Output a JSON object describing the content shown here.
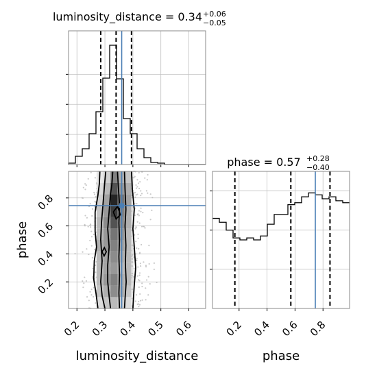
{
  "colors": {
    "truth": "#4a7fb5",
    "hist": "#000000",
    "grid": "#c0c0c0",
    "frame": "#888888"
  },
  "chart_data": {
    "type": "corner",
    "parameters": [
      "luminosity_distance",
      "phase"
    ],
    "truth": {
      "luminosity_distance": 0.36,
      "phase": 0.745
    },
    "luminosity_distance": {
      "title_lhs": "luminosity_distance = 0.34",
      "title_sup": "+0.06",
      "title_sub": "−0.05",
      "xlabel": "luminosity_distance",
      "xlim": [
        0.17,
        0.66
      ],
      "xticks": [
        0.2,
        0.3,
        0.4,
        0.5,
        0.6
      ],
      "xticklabels": [
        "0.2",
        "0.3",
        "0.4",
        "0.5",
        "0.6"
      ],
      "quantiles": [
        0.285,
        0.34,
        0.395
      ],
      "hist": {
        "bin_edges": [
          0.17,
          0.1945,
          0.219,
          0.2435,
          0.268,
          0.2925,
          0.317,
          0.3415,
          0.366,
          0.3905,
          0.415,
          0.4395,
          0.464,
          0.4885,
          0.513,
          0.5375,
          0.562,
          0.5865,
          0.611,
          0.6355,
          0.66
        ],
        "counts": [
          0.2,
          1.2,
          2.3,
          4.5,
          7.7,
          12.6,
          17.4,
          12.5,
          6.7,
          4.5,
          2.3,
          1.0,
          0.3,
          0.2,
          0,
          0,
          0,
          0,
          0,
          0
        ],
        "ymax": 19.5
      }
    },
    "phase": {
      "title_lhs": "phase = 0.57",
      "title_sup": "+0.28",
      "title_sub": "−0.40",
      "xlabel": "phase",
      "ylabel": "phase",
      "lim": [
        0.01,
        0.99
      ],
      "ticks": [
        0.2,
        0.4,
        0.6,
        0.8
      ],
      "ticklabels": [
        "0.2",
        "0.4",
        "0.6",
        "0.8"
      ],
      "quantiles": [
        0.17,
        0.57,
        0.85
      ],
      "hist": {
        "bin_edges": [
          0.01,
          0.059,
          0.108,
          0.157,
          0.206,
          0.255,
          0.304,
          0.353,
          0.402,
          0.451,
          0.5,
          0.549,
          0.598,
          0.647,
          0.696,
          0.745,
          0.794,
          0.843,
          0.892,
          0.941,
          0.99
        ],
        "counts": [
          2.3,
          2.2,
          2.0,
          1.8,
          1.75,
          1.8,
          1.75,
          1.85,
          2.15,
          2.4,
          2.4,
          2.65,
          2.7,
          2.85,
          2.95,
          2.9,
          2.8,
          2.85,
          2.75,
          2.7
        ],
        "ymax": 3.5
      }
    },
    "joint": {
      "hist2d_columns": [
        {
          "x0": 0.27,
          "x1": 0.295,
          "intensity": [
            0.15,
            0.25,
            0.3,
            0.3,
            0.3,
            0.35,
            0.3,
            0.3,
            0.25,
            0.2,
            0.15,
            0.1
          ]
        },
        {
          "x0": 0.295,
          "x1": 0.32,
          "intensity": [
            0.25,
            0.35,
            0.45,
            0.4,
            0.4,
            0.45,
            0.45,
            0.5,
            0.45,
            0.4,
            0.3,
            0.2
          ]
        },
        {
          "x0": 0.32,
          "x1": 0.345,
          "intensity": [
            0.3,
            0.5,
            0.55,
            0.45,
            0.5,
            0.55,
            0.6,
            0.75,
            0.85,
            0.95,
            0.75,
            0.55
          ]
        },
        {
          "x0": 0.345,
          "x1": 0.37,
          "intensity": [
            0.2,
            0.35,
            0.35,
            0.3,
            0.35,
            0.4,
            0.45,
            0.5,
            0.55,
            0.6,
            0.45,
            0.35
          ]
        },
        {
          "x0": 0.37,
          "x1": 0.395,
          "intensity": [
            0.15,
            0.25,
            0.3,
            0.3,
            0.3,
            0.3,
            0.3,
            0.35,
            0.35,
            0.4,
            0.35,
            0.25
          ]
        }
      ],
      "contours": [
        [
          [
            0.32,
            0.01
          ],
          [
            0.315,
            0.1
          ],
          [
            0.31,
            0.2
          ],
          [
            0.31,
            0.32
          ],
          [
            0.315,
            0.45
          ],
          [
            0.31,
            0.58
          ],
          [
            0.315,
            0.7
          ],
          [
            0.32,
            0.83
          ],
          [
            0.325,
            0.9
          ],
          [
            0.328,
            0.99
          ]
        ],
        [
          [
            0.345,
            0.99
          ],
          [
            0.348,
            0.88
          ],
          [
            0.352,
            0.75
          ],
          [
            0.35,
            0.62
          ],
          [
            0.352,
            0.5
          ],
          [
            0.35,
            0.38
          ],
          [
            0.352,
            0.25
          ],
          [
            0.35,
            0.12
          ],
          [
            0.352,
            0.01
          ]
        ],
        [
          [
            0.3,
            0.01
          ],
          [
            0.29,
            0.1
          ],
          [
            0.285,
            0.2
          ],
          [
            0.29,
            0.35
          ],
          [
            0.285,
            0.5
          ],
          [
            0.288,
            0.63
          ],
          [
            0.293,
            0.75
          ],
          [
            0.298,
            0.88
          ],
          [
            0.303,
            0.99
          ]
        ],
        [
          [
            0.37,
            0.99
          ],
          [
            0.372,
            0.86
          ],
          [
            0.375,
            0.72
          ],
          [
            0.372,
            0.6
          ],
          [
            0.375,
            0.46
          ],
          [
            0.373,
            0.33
          ],
          [
            0.376,
            0.2
          ],
          [
            0.372,
            0.08
          ],
          [
            0.37,
            0.01
          ]
        ],
        [
          [
            0.275,
            0.01
          ],
          [
            0.268,
            0.12
          ],
          [
            0.26,
            0.22
          ],
          [
            0.262,
            0.35
          ],
          [
            0.27,
            0.45
          ],
          [
            0.265,
            0.56
          ],
          [
            0.265,
            0.7
          ],
          [
            0.275,
            0.82
          ],
          [
            0.28,
            0.9
          ],
          [
            0.282,
            0.99
          ]
        ],
        [
          [
            0.395,
            0.99
          ],
          [
            0.398,
            0.86
          ],
          [
            0.405,
            0.72
          ],
          [
            0.4,
            0.58
          ],
          [
            0.405,
            0.45
          ],
          [
            0.41,
            0.3
          ],
          [
            0.405,
            0.18
          ],
          [
            0.402,
            0.08
          ],
          [
            0.4,
            0.01
          ]
        ],
        [
          [
            0.29,
            0.415
          ],
          [
            0.298,
            0.445
          ],
          [
            0.305,
            0.415
          ],
          [
            0.297,
            0.385
          ],
          [
            0.29,
            0.415
          ]
        ],
        [
          [
            0.33,
            0.7
          ],
          [
            0.345,
            0.74
          ],
          [
            0.355,
            0.68
          ],
          [
            0.34,
            0.65
          ],
          [
            0.33,
            0.7
          ]
        ]
      ]
    },
    "grid": true
  }
}
